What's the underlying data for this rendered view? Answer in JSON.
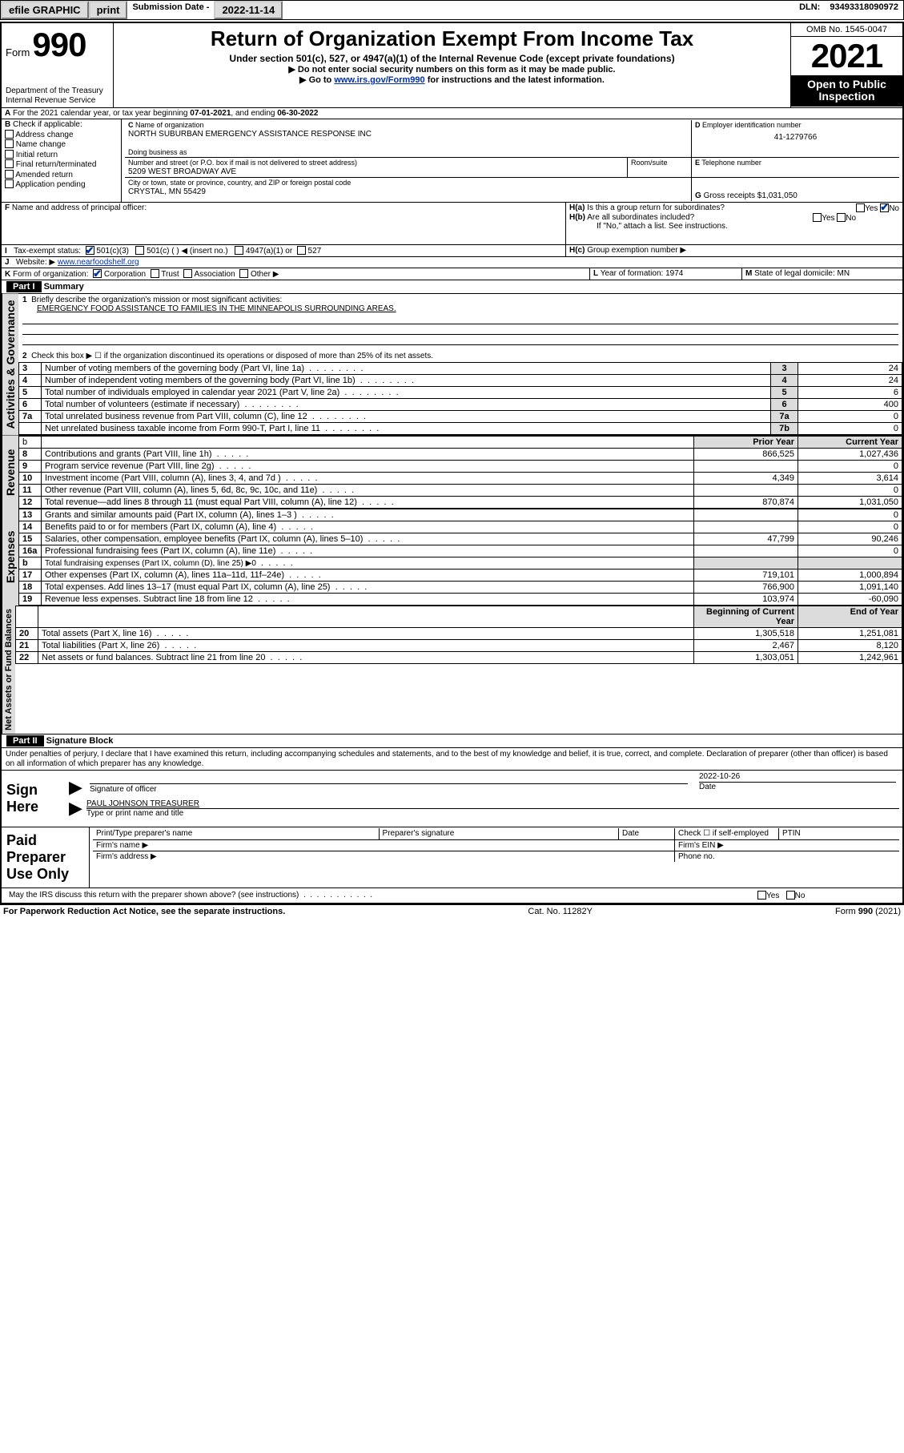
{
  "topbar": {
    "efile": "efile GRAPHIC",
    "print": "print",
    "sub_label": "Submission Date -",
    "sub_date": "2022-11-14",
    "dln_label": "DLN:",
    "dln": "93493318090972"
  },
  "header": {
    "form_word": "Form",
    "form_num": "990",
    "dept": "Department of the Treasury",
    "irs": "Internal Revenue Service",
    "title": "Return of Organization Exempt From Income Tax",
    "sub1": "Under section 501(c), 527, or 4947(a)(1) of the Internal Revenue Code (except private foundations)",
    "sub2": "Do not enter social security numbers on this form as it may be made public.",
    "sub3_a": "Go to ",
    "sub3_link": "www.irs.gov/Form990",
    "sub3_b": " for instructions and the latest information.",
    "omb": "OMB No. 1545-0047",
    "year": "2021",
    "otp1": "Open to Public",
    "otp2": "Inspection"
  },
  "lineA": {
    "text_a": "For the 2021 calendar year, or tax year beginning ",
    "begin": "07-01-2021",
    "text_b": ", and ending ",
    "end": "06-30-2022"
  },
  "B": {
    "label": "Check if applicable:",
    "opts": [
      "Address change",
      "Name change",
      "Initial return",
      "Final return/terminated",
      "Amended return",
      "Application pending"
    ]
  },
  "C": {
    "name_label": "Name of organization",
    "name": "NORTH SUBURBAN EMERGENCY ASSISTANCE RESPONSE INC",
    "dba_label": "Doing business as",
    "street_label": "Number and street (or P.O. box if mail is not delivered to street address)",
    "room_label": "Room/suite",
    "street": "5209 WEST BROADWAY AVE",
    "city_label": "City or town, state or province, country, and ZIP or foreign postal code",
    "city": "CRYSTAL, MN  55429"
  },
  "D": {
    "label": "Employer identification number",
    "value": "41-1279766"
  },
  "E": {
    "label": "Telephone number"
  },
  "G": {
    "label": "Gross receipts $",
    "value": "1,031,050"
  },
  "F": {
    "label": "Name and address of principal officer:"
  },
  "H": {
    "a": "Is this a group return for subordinates?",
    "b": "Are all subordinates included?",
    "b_note": "If \"No,\" attach a list. See instructions.",
    "c": "Group exemption number ▶",
    "yes": "Yes",
    "no": "No"
  },
  "I": {
    "label": "Tax-exempt status:",
    "o1": "501(c)(3)",
    "o2": "501(c) (  ) ◀ (insert no.)",
    "o3": "4947(a)(1) or",
    "o4": "527"
  },
  "J": {
    "label": "Website: ▶",
    "value": "www.nearfoodshelf.org"
  },
  "K": {
    "label": "Form of organization:",
    "o1": "Corporation",
    "o2": "Trust",
    "o3": "Association",
    "o4": "Other ▶"
  },
  "L": {
    "label": "Year of formation:",
    "value": "1974"
  },
  "M": {
    "label": "State of legal domicile:",
    "value": "MN"
  },
  "part1": {
    "head": "Part I",
    "title": "Summary"
  },
  "s1": {
    "q1a": "Briefly describe the organization's mission or most significant activities:",
    "q1b": "EMERGENCY FOOD ASSISTANCE TO FAMILIES IN THE MINNEAPOLIS SURROUNDING AREAS.",
    "q2": "Check this box ▶ ☐ if the organization discontinued its operations or disposed of more than 25% of its net assets.",
    "rows": [
      {
        "n": "3",
        "t": "Number of voting members of the governing body (Part VI, line 1a)",
        "b": "3",
        "v": "24"
      },
      {
        "n": "4",
        "t": "Number of independent voting members of the governing body (Part VI, line 1b)",
        "b": "4",
        "v": "24"
      },
      {
        "n": "5",
        "t": "Total number of individuals employed in calendar year 2021 (Part V, line 2a)",
        "b": "5",
        "v": "6"
      },
      {
        "n": "6",
        "t": "Total number of volunteers (estimate if necessary)",
        "b": "6",
        "v": "400"
      },
      {
        "n": "7a",
        "t": "Total unrelated business revenue from Part VIII, column (C), line 12",
        "b": "7a",
        "v": "0"
      },
      {
        "n": "",
        "t": "Net unrelated business taxable income from Form 990-T, Part I, line 11",
        "b": "7b",
        "v": "0"
      }
    ]
  },
  "cols": {
    "b": "b",
    "prior": "Prior Year",
    "curr": "Current Year",
    "boc": "Beginning of Current Year",
    "eoy": "End of Year"
  },
  "rev": [
    {
      "n": "8",
      "t": "Contributions and grants (Part VIII, line 1h)",
      "p": "866,525",
      "c": "1,027,436"
    },
    {
      "n": "9",
      "t": "Program service revenue (Part VIII, line 2g)",
      "p": "",
      "c": "0"
    },
    {
      "n": "10",
      "t": "Investment income (Part VIII, column (A), lines 3, 4, and 7d )",
      "p": "4,349",
      "c": "3,614"
    },
    {
      "n": "11",
      "t": "Other revenue (Part VIII, column (A), lines 5, 6d, 8c, 9c, 10c, and 11e)",
      "p": "",
      "c": "0"
    },
    {
      "n": "12",
      "t": "Total revenue—add lines 8 through 11 (must equal Part VIII, column (A), line 12)",
      "p": "870,874",
      "c": "1,031,050"
    }
  ],
  "exp": [
    {
      "n": "13",
      "t": "Grants and similar amounts paid (Part IX, column (A), lines 1–3 )",
      "p": "",
      "c": "0"
    },
    {
      "n": "14",
      "t": "Benefits paid to or for members (Part IX, column (A), line 4)",
      "p": "",
      "c": "0"
    },
    {
      "n": "15",
      "t": "Salaries, other compensation, employee benefits (Part IX, column (A), lines 5–10)",
      "p": "47,799",
      "c": "90,246"
    },
    {
      "n": "16a",
      "t": "Professional fundraising fees (Part IX, column (A), line 11e)",
      "p": "",
      "c": "0"
    },
    {
      "n": "b",
      "t": "Total fundraising expenses (Part IX, column (D), line 25) ▶0",
      "p": "",
      "c": "",
      "shade": true,
      "sm": true
    },
    {
      "n": "17",
      "t": "Other expenses (Part IX, column (A), lines 11a–11d, 11f–24e)",
      "p": "719,101",
      "c": "1,000,894"
    },
    {
      "n": "18",
      "t": "Total expenses. Add lines 13–17 (must equal Part IX, column (A), line 25)",
      "p": "766,900",
      "c": "1,091,140"
    },
    {
      "n": "19",
      "t": "Revenue less expenses. Subtract line 18 from line 12",
      "p": "103,974",
      "c": "-60,090"
    }
  ],
  "net": [
    {
      "n": "20",
      "t": "Total assets (Part X, line 16)",
      "p": "1,305,518",
      "c": "1,251,081"
    },
    {
      "n": "21",
      "t": "Total liabilities (Part X, line 26)",
      "p": "2,467",
      "c": "8,120"
    },
    {
      "n": "22",
      "t": "Net assets or fund balances. Subtract line 21 from line 20",
      "p": "1,303,051",
      "c": "1,242,961"
    }
  ],
  "part2": {
    "head": "Part II",
    "title": "Signature Block"
  },
  "sig": {
    "jurat": "Under penalties of perjury, I declare that I have examined this return, including accompanying schedules and statements, and to the best of my knowledge and belief, it is true, correct, and complete. Declaration of preparer (other than officer) is based on all information of which preparer has any knowledge.",
    "sign_here": "Sign Here",
    "sig_officer": "Signature of officer",
    "date_label": "Date",
    "date": "2022-10-26",
    "name_title": "PAUL JOHNSON TREASURER",
    "type_label": "Type or print name and title",
    "paid": "Paid Preparer Use Only",
    "prep_name": "Print/Type preparer's name",
    "prep_sig": "Preparer's signature",
    "prep_date": "Date",
    "check_self": "Check ☐ if self-employed",
    "ptin": "PTIN",
    "firm_name": "Firm's name  ▶",
    "firm_ein": "Firm's EIN ▶",
    "firm_addr": "Firm's address ▶",
    "phone": "Phone no."
  },
  "bottom": {
    "discuss": "May the IRS discuss this return with the preparer shown above? (see instructions)",
    "yes": "Yes",
    "no": "No",
    "pra": "For Paperwork Reduction Act Notice, see the separate instructions.",
    "cat": "Cat. No. 11282Y",
    "form": "Form 990 (2021)"
  },
  "vlabels": {
    "gov": "Activities & Governance",
    "rev": "Revenue",
    "exp": "Expenses",
    "net": "Net Assets or Fund Balances"
  }
}
